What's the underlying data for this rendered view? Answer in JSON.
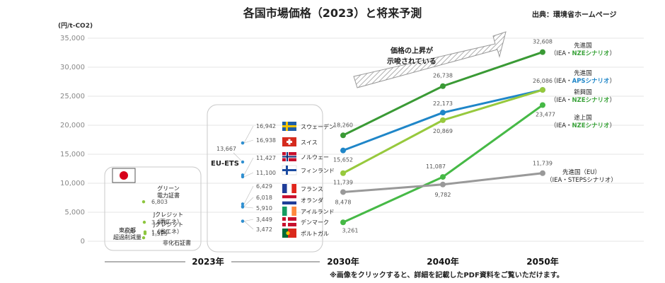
{
  "title": "各国市場価格（2023）と将来予測",
  "source": "出典：環境省ホームページ",
  "note": "※画像をクリックすると、詳細を記載したPDF資料をご覧いただけます。",
  "arrow_text": [
    "価格の上昇が",
    "示唆されている"
  ],
  "colors": {
    "dark_green": "#3a9a35",
    "blue": "#1f86c8",
    "light_green": "#97c93d",
    "mid_green": "#46b946",
    "gray": "#999999",
    "dot_blue": "#2f8fd0",
    "jp_dot": "#8dc63f",
    "nze": "#3aa33a",
    "aps": "#1f86c8"
  },
  "chart_data": {
    "type": "line",
    "unit_label": "(円/t-CO2)",
    "ylim": [
      0,
      35000
    ],
    "yticks": [
      "0",
      "5,000",
      "10,000",
      "15,000",
      "20,000",
      "25,000",
      "30,000",
      "35,000"
    ],
    "x": [
      "2023年",
      "2030年",
      "2040年",
      "2050年"
    ],
    "series": [
      {
        "id": "adv_nze",
        "values": [
          null,
          18260,
          26738,
          32608
        ],
        "value_labels": [
          "",
          "18,260",
          "26,738",
          "32,608"
        ],
        "label": [
          "先進国",
          "（IEA・",
          "NZEシナリオ",
          "）"
        ]
      },
      {
        "id": "adv_aps",
        "values": [
          null,
          15652,
          22173,
          26086
        ],
        "value_labels": [
          "",
          "15,652",
          "22,173",
          "26,086"
        ],
        "label": [
          "先進国",
          "（IEA・",
          "APSシナリオ",
          "）"
        ]
      },
      {
        "id": "emg_nze",
        "values": [
          null,
          11739,
          20869,
          26086
        ],
        "value_labels": [
          "",
          "11,739",
          "20,869",
          ""
        ],
        "label": [
          "新興国",
          "（IEA・",
          "NZEシナリオ",
          "）"
        ]
      },
      {
        "id": "dev_nze",
        "values": [
          null,
          3261,
          11087,
          23477
        ],
        "value_labels": [
          "",
          "3,261",
          "11,087",
          "23,477"
        ],
        "label": [
          "途上国",
          "（IEA・",
          "NZEシナリオ",
          "）"
        ]
      },
      {
        "id": "adv_eu_steps",
        "values": [
          null,
          8478,
          9782,
          11739
        ],
        "value_labels": [
          "",
          "8,478",
          "9,782",
          "11,739"
        ],
        "label": [
          "先進国（EU）",
          "（IEA・STEPSシナリオ）"
        ]
      }
    ],
    "eu_ets": {
      "label": "EU-ETS",
      "points": [
        {
          "country": "スウェーデン",
          "value": 16942,
          "label": "16,942"
        },
        {
          "country": "スイス",
          "value": 16938,
          "label": "16,938"
        },
        {
          "country": "",
          "value": 13667,
          "label": "13,667"
        },
        {
          "country": "ノルウェー",
          "value": 11427,
          "label": "11,427"
        },
        {
          "country": "フィンランド",
          "value": 11100,
          "label": "11,100"
        },
        {
          "country": "フランス",
          "value": 6429,
          "label": "6,429"
        },
        {
          "country": "オランダ",
          "value": 6018,
          "label": "6,018"
        },
        {
          "country": "アイルランド",
          "value": 5910,
          "label": "5,910"
        },
        {
          "country": "デンマーク",
          "value": 3449,
          "label": "3,449"
        },
        {
          "country": "ポルトガル",
          "value": 3472,
          "label": "3,472"
        }
      ]
    },
    "japan": {
      "points": [
        {
          "value": 6803,
          "label": "6,803",
          "name": [
            "グリーン",
            "電力証書"
          ]
        },
        {
          "value": 3278,
          "label": "3,278",
          "name": [
            "Jクレジット",
            "（再エネ）"
          ]
        },
        {
          "value": 1607,
          "label": "1,607",
          "name": [
            "Jクレジット",
            "（省エネ）"
          ]
        },
        {
          "value": 600,
          "label": "600",
          "name": [
            "東京都",
            "超過削減量"
          ]
        },
        {
          "value": 1325,
          "label": "1,325",
          "name": [
            "非化石証書"
          ]
        }
      ]
    }
  }
}
